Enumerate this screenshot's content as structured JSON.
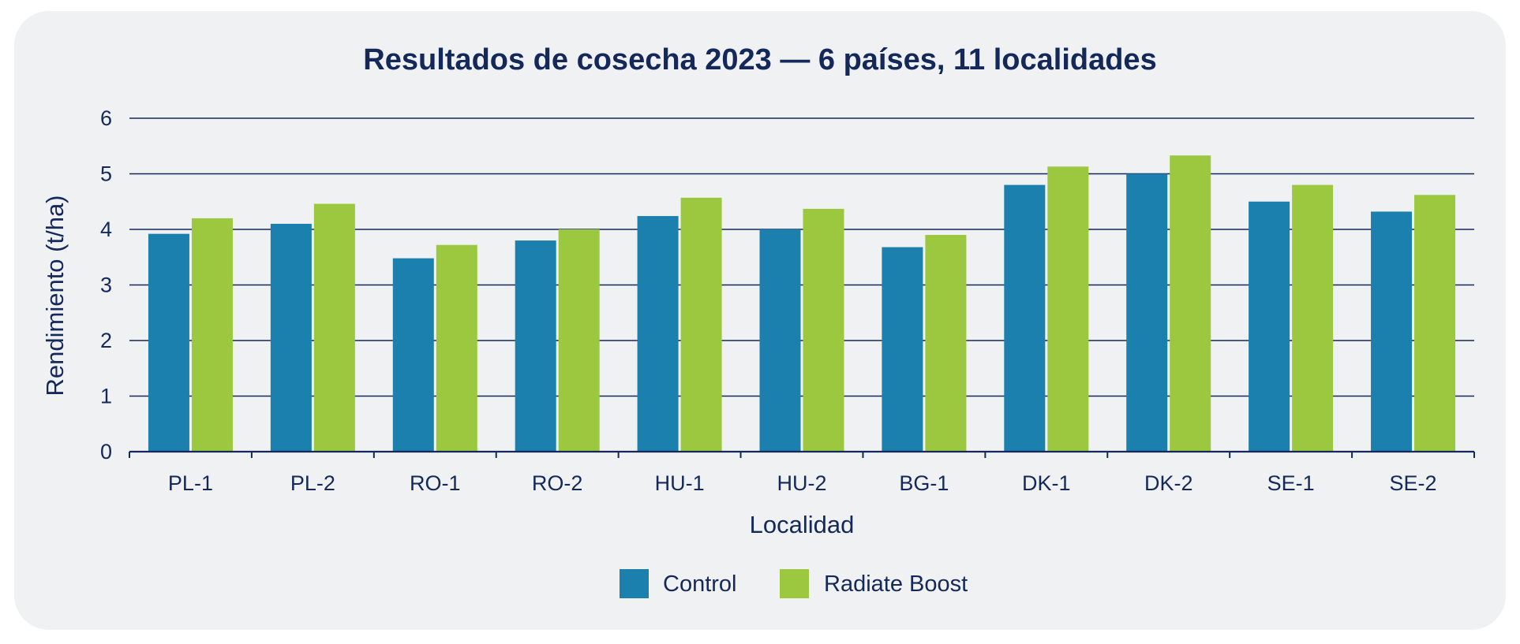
{
  "chart_data": {
    "type": "bar",
    "title": "Resultados de cosecha 2023 — 6 países, 11 localidades",
    "xlabel": "Localidad",
    "ylabel": "Rendimiento (t/ha)",
    "ylim": [
      0,
      6
    ],
    "yticks": [
      0,
      1,
      2,
      3,
      4,
      5,
      6
    ],
    "grid": true,
    "legend_position": "bottom",
    "categories": [
      "PL-1",
      "PL-2",
      "RO-1",
      "RO-2",
      "HU-1",
      "HU-2",
      "BG-1",
      "DK-1",
      "DK-2",
      "SE-1",
      "SE-2"
    ],
    "series": [
      {
        "name": "Control",
        "color": "#1b80ad",
        "values": [
          3.92,
          4.1,
          3.48,
          3.8,
          4.24,
          4.0,
          3.68,
          4.8,
          5.0,
          4.5,
          4.32
        ]
      },
      {
        "name": "Radiate Boost",
        "color": "#9bc83e",
        "values": [
          4.2,
          4.46,
          3.72,
          4.0,
          4.57,
          4.37,
          3.9,
          5.13,
          5.33,
          4.8,
          4.62
        ]
      }
    ]
  }
}
